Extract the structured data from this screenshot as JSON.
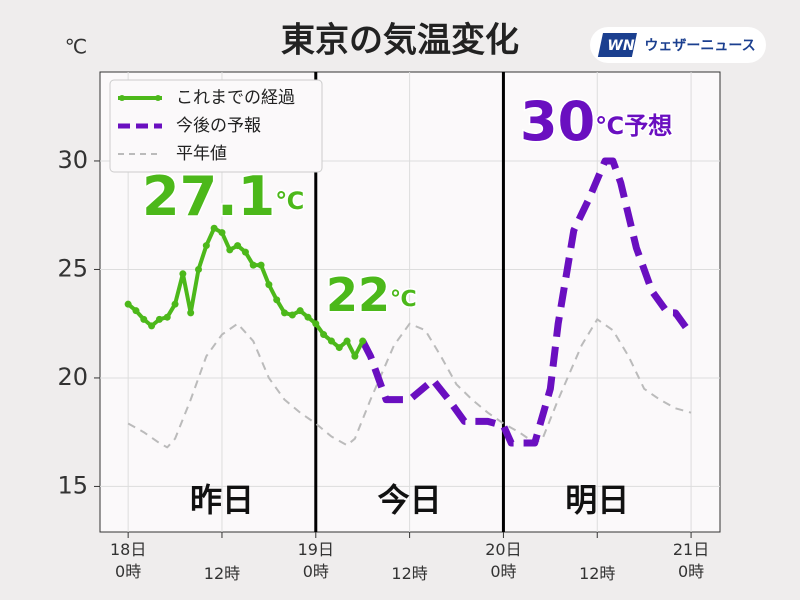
{
  "chart_data": {
    "type": "line",
    "title": "東京の気温変化",
    "y_unit": "℃",
    "brand": {
      "mark": "WN",
      "name": "ウェザーニュース"
    },
    "xlim": [
      -3.6,
      75.7
    ],
    "ylim": [
      12.9,
      34.1
    ],
    "yticks": [
      15,
      20,
      25,
      30
    ],
    "xticks": [
      {
        "value": 0,
        "label": "18日\n0時"
      },
      {
        "value": 12,
        "label": "12時"
      },
      {
        "value": 24,
        "label": "19日\n0時"
      },
      {
        "value": 36,
        "label": "12時"
      },
      {
        "value": 48,
        "label": "20日\n0時"
      },
      {
        "value": 60,
        "label": "12時"
      },
      {
        "value": 72,
        "label": "21日\n0時"
      }
    ],
    "grid": true,
    "legend": "upper left",
    "day_dividers": [
      24,
      48
    ],
    "day_labels": [
      "昨日",
      "今日",
      "明日"
    ],
    "annotations": [
      {
        "text": "27.1",
        "unit": "℃",
        "color": "#4cb81a"
      },
      {
        "text": "22",
        "unit": "℃",
        "color": "#4cb81a"
      },
      {
        "text": "30",
        "unit": "℃予想",
        "color": "#6a0fc0"
      }
    ],
    "series": [
      {
        "name": "これまでの経過",
        "color": "#4cb81a",
        "style": "solid",
        "marker": true,
        "x": [
          0,
          1,
          2,
          3,
          4,
          5,
          6,
          7,
          8,
          9,
          10,
          11,
          12,
          13,
          14,
          15,
          16,
          17,
          18,
          19,
          20,
          21,
          22,
          23,
          24,
          25,
          26,
          27,
          28,
          29,
          30
        ],
        "values": [
          23.4,
          23.1,
          22.7,
          22.4,
          22.7,
          22.8,
          23.4,
          24.8,
          23.0,
          25.0,
          26.1,
          26.9,
          26.7,
          25.9,
          26.1,
          25.8,
          25.2,
          25.2,
          24.3,
          23.6,
          23.0,
          22.9,
          23.1,
          22.8,
          22.5,
          22.0,
          21.7,
          21.4,
          21.7,
          21.0,
          21.7
        ]
      },
      {
        "name": "今後の予報",
        "color": "#6a0fc0",
        "style": "dashed",
        "marker": false,
        "x": [
          30,
          31,
          33,
          36,
          39,
          41,
          43,
          46,
          48,
          49,
          52,
          54,
          55,
          57,
          59,
          61,
          62,
          63,
          65,
          67,
          69,
          70,
          72
        ],
        "values": [
          21.7,
          21.0,
          19.0,
          19.0,
          19.9,
          19.0,
          18.0,
          18.0,
          17.8,
          17.0,
          17.0,
          19.5,
          22.5,
          26.8,
          28.3,
          30.0,
          30.0,
          29.0,
          26.0,
          24.0,
          23.0,
          23.0,
          22.0
        ]
      },
      {
        "name": "平年値",
        "color": "#bbbbbb",
        "style": "thin-dashed",
        "marker": false,
        "x": [
          0,
          2,
          4,
          5,
          6,
          8,
          10,
          12,
          14,
          16,
          18,
          20,
          22,
          24,
          26,
          28,
          29,
          31,
          34,
          36,
          38,
          40,
          42,
          44,
          46,
          48,
          50,
          52,
          53,
          55,
          58,
          60,
          62,
          64,
          66,
          68,
          70,
          72
        ],
        "values": [
          17.9,
          17.5,
          17.0,
          16.8,
          17.2,
          19.0,
          21.0,
          22.0,
          22.5,
          21.7,
          20.0,
          19.0,
          18.4,
          17.9,
          17.3,
          16.9,
          17.2,
          19.0,
          21.5,
          22.5,
          22.2,
          21.0,
          19.7,
          19.0,
          18.4,
          17.9,
          17.5,
          17.0,
          17.2,
          19.0,
          21.5,
          22.7,
          22.2,
          21.0,
          19.5,
          19.0,
          18.6,
          18.4
        ]
      }
    ]
  }
}
